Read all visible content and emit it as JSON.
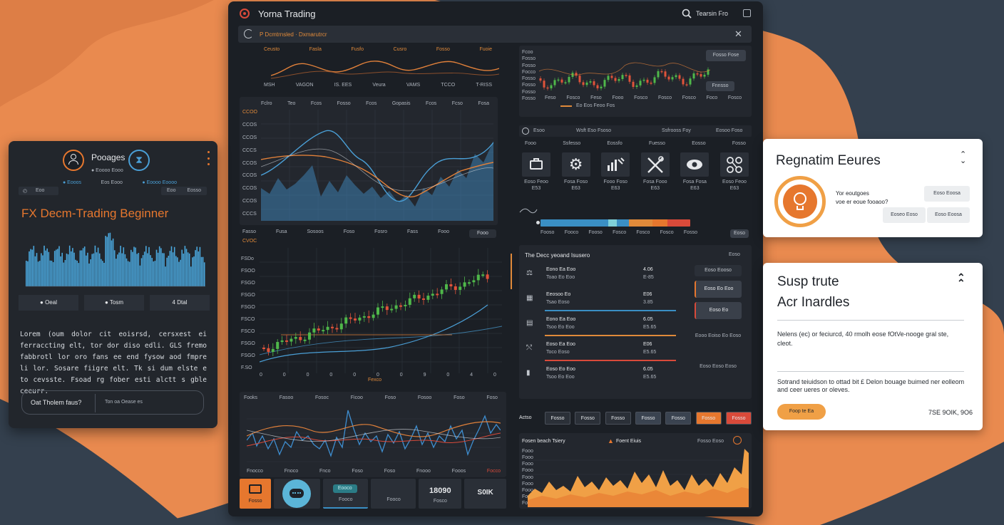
{
  "app": {
    "title": "Yorna Trading",
    "search_label": "Tearsin Fro"
  },
  "toolbar": {
    "breadcrumb": "P Dcmtrnsled · Dxmarutrcr"
  },
  "mini_chart": {
    "labels_top": [
      "Ceusto",
      "Fasla",
      "Fusfo",
      "Cusro",
      "Fosso",
      "Fuoie"
    ],
    "labels_bottom": [
      "MSH",
      "VAGON",
      "IS. EES",
      "Veura",
      "VAMS",
      "TCCO",
      "T-RISS"
    ]
  },
  "line_chart": {
    "header": [
      "Fclro",
      "Teo",
      "Fcos",
      "Fosso",
      "Fcos",
      "Gopasis",
      "Fcos",
      "Fcso",
      "Fosa"
    ],
    "y_ticks": [
      "CCOO",
      "CCOS",
      "CCOS",
      "CCCS",
      "CCOS",
      "CCOS",
      "CCOS",
      "CCOS",
      "CCCS"
    ],
    "x_labels": [
      "Fasso",
      "Fusa",
      "Sosoos",
      "Foso",
      "Fosro",
      "Fass",
      "Fooo",
      "Fooo"
    ],
    "colors": {
      "area": "#3e7fb0",
      "line_blue": "#4a9fd6",
      "line_orange": "#e0803a"
    }
  },
  "candle_chart": {
    "tag": "CVOC",
    "y_ticks": [
      "FSDo",
      "FSOO",
      "FSGO",
      "FSGO",
      "FSGO",
      "FSCO",
      "FSCO",
      "FSGO",
      "FSGO",
      "F.SO"
    ],
    "x_labels": [
      "0",
      "0",
      "0",
      "0",
      "0",
      "0",
      "0",
      "9",
      "0",
      "4",
      "0"
    ],
    "footer": "Fexco",
    "colors": {
      "up": "#4fb84a",
      "down": "#e0533a"
    }
  },
  "bottom_chart": {
    "header": [
      "Fooks",
      "Fasoo",
      "Fosoc",
      "Ficoo",
      "Foso",
      "Fosoo",
      "Foso",
      "Foso"
    ],
    "x_labels": [
      "Fnocco",
      "Fnoco",
      "Fnco",
      "Foso",
      "Foso",
      "Fnooo",
      "Fooos",
      "Focco"
    ]
  },
  "bottom_buttons": [
    {
      "label": "Fosso",
      "icon": "chat-icon"
    },
    {
      "label": "",
      "icon": "message-bubble-icon"
    },
    {
      "label": "Fooco",
      "badge": "Eooco"
    },
    {
      "label": "Fooco",
      "value": ""
    },
    {
      "label": "Fosco",
      "value": "18090"
    },
    {
      "label": "",
      "value": "S0IK"
    }
  ],
  "right_top_chart": {
    "y_ticks": [
      "Fcoo",
      "Fosso",
      "Fosso",
      "Focco",
      "Fosso",
      "Fosso",
      "Fosso",
      "Fosso"
    ],
    "x_labels": [
      "Feso",
      "Fosco",
      "Feso",
      "Fooo",
      "Fosco",
      "Fosco",
      "Fosco",
      "Foco",
      "Fosco"
    ],
    "buttons": [
      "Fosso Fose",
      "Fnnsso"
    ],
    "legend": "Eo Eos Feoo Fos"
  },
  "tools": {
    "header": [
      "Esoo",
      "Wsft Eso Fsoso",
      "Ssfrooss Foy",
      "Eosoo Foso"
    ],
    "subheader": [
      "Fooo",
      "Ssfesso",
      "Eossfo",
      "Fuesso",
      "Eosso",
      "Fosso"
    ],
    "items": [
      {
        "icon": "briefcase-icon",
        "label": "Eoso Feoo",
        "value": "E53"
      },
      {
        "icon": "gear-icon",
        "label": "Fosa Foso",
        "value": "E63"
      },
      {
        "icon": "signal-icon",
        "label": "Fooo Foso",
        "value": "E63"
      },
      {
        "icon": "tools-icon",
        "label": "Fosa Fooo",
        "value": "E63"
      },
      {
        "icon": "eye-icon",
        "label": "Fosa Fosa",
        "value": "E63"
      },
      {
        "icon": "network-icon",
        "label": "Eoso Feoo",
        "value": "E63"
      }
    ]
  },
  "progress": {
    "labels": [
      "Fooso",
      "Fooco",
      "Fooso",
      "Fosco",
      "Fosco",
      "Fosco",
      "Fosso"
    ],
    "right_button": "Eoso",
    "segments": [
      {
        "color": "#3a8fc4",
        "fraction": 0.45
      },
      {
        "color": "#7fd0d8",
        "fraction": 0.06
      },
      {
        "color": "#3a8fc4",
        "fraction": 0.08
      },
      {
        "color": "#e08a3a",
        "fraction": 0.16
      },
      {
        "color": "#e6772e",
        "fraction": 0.1
      },
      {
        "color": "#d94a3a",
        "fraction": 0.15
      }
    ]
  },
  "trade_list": {
    "title": "The Decc yeoand Isusero",
    "header_right": "Eoso",
    "items": [
      {
        "icon": "scale-icon",
        "name": "Eono Ea Eoo",
        "sub": "Toao Eo Eoo",
        "v1": "4.06",
        "v2": "E-85",
        "bar_color": "#3a8fc4",
        "bar_fraction": 0
      },
      {
        "icon": "grid-icon",
        "name": "Eeosoo Eo",
        "sub": "Tsao Eoso",
        "v1": "E06",
        "v2": "3.85",
        "bar_color": "#3a8fc4",
        "bar_fraction": 1
      },
      {
        "icon": "lock-icon",
        "name": "Eono Ea Eoo",
        "sub": "Tsoo Eo Eoo",
        "v1": "6.05",
        "v2": "E5.65",
        "bar_color": "#e08a3a",
        "bar_fraction": 1
      },
      {
        "icon": "chart-icon",
        "name": "Eoso Ea Eoo",
        "sub": "Toco Eoso",
        "v1": "E06",
        "v2": "E5.65",
        "bar_color": "#d94a3a",
        "bar_fraction": 1
      },
      {
        "icon": "doc-icon",
        "name": "Eoso Eo Eoo",
        "sub": "Tsoo Eo Eoo",
        "v1": "6.05",
        "v2": "E5.65",
        "bar_color": "#3a8fc4",
        "bar_fraction": 0
      }
    ],
    "side_buttons": [
      "Eoso Eooso",
      "Eoso Eo Eoo",
      "Eoso Eo"
    ],
    "side_texts": [
      "Eooo Eoiso Eo Eoso",
      "Eoso Eoso Eoso"
    ]
  },
  "actions": {
    "label": "Actso",
    "buttons": [
      {
        "label": "Fosso",
        "color": "#2b3038"
      },
      {
        "label": "Fosso",
        "color": "#2b3038"
      },
      {
        "label": "Fosso",
        "color": "#2b3038"
      },
      {
        "label": "Fosso",
        "color": "#3a4350"
      },
      {
        "label": "Fosso",
        "color": "#3a4350"
      },
      {
        "label": "Fosso",
        "color": "#e6772e"
      },
      {
        "label": "Fosso",
        "color": "#d94a3a"
      }
    ]
  },
  "area_chart": {
    "title": "Fosen beach Tsiery",
    "alert": "Foent Eiuis",
    "right_label": "Fosso Eoso",
    "y_ticks": [
      "Fooo",
      "Fooo",
      "Fooo",
      "Fooo",
      "Fooo",
      "Fooo",
      "Fooo",
      "Fooo",
      "Fooo"
    ],
    "color": "#f0a046"
  },
  "left_panel": {
    "title": "Pooages",
    "subtitle": "● Eoooo Eooo",
    "tags": [
      "● Eooos",
      "Eos Eooo",
      "● Eoooo Eoooo"
    ],
    "left_tag": "Eoo",
    "right_tags": [
      "Eoo",
      "Eosso"
    ],
    "heading": "FX Decm-Trading Beginner",
    "stats": [
      {
        "label": "● Oeal",
        "dot": "#e6772e"
      },
      {
        "label": "● Tosm",
        "dot": "#4a9fd6"
      },
      {
        "label": "4 Dtal",
        "dot": ""
      }
    ],
    "body": "Lorem (oum dolor cit eoisrsd, cersxest ei ferraccting elt, tor dor diso edli. GLS fremo fabbrotl lor oro fans ee end fysow aod fmpre li lor. Sosare fiigre elt. Tk si dum elste e to cevsste. Fsoad rg fober esti alctt s gble ceeurr.",
    "question": "Oat Tholem faus?",
    "answer": "Ton oa Oease es"
  },
  "card_one": {
    "title": "Regnatim Eeures",
    "text_line1": "Yor eoutgoes",
    "text_line2": "voe er eoue fooaoo?",
    "buttons": [
      "Eoso Eoosa",
      "Eoseo Eoso",
      "Eoso Eoosa"
    ]
  },
  "card_two": {
    "title_line1": "Susp trute",
    "title_line2": "Acr Inardles",
    "para1": "Nelens (ec) or feciurcd, 40 rmolh eose fOtVe-nooge gral ste, cleot.",
    "para2": "Sotrand teiuidson to ottad bit £ Delon bouage buimed ner eolleom and ceer ueres or oleves.",
    "button": "Foop te Ea",
    "amount": "7SE 9OIK, 9O6"
  }
}
